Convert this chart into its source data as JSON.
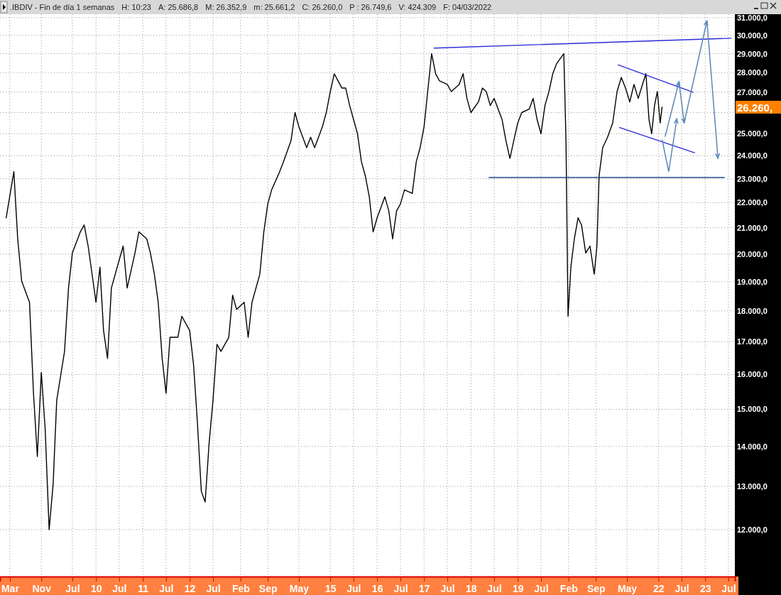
{
  "chart_data": {
    "type": "line",
    "title": ".IBDIV - Fin de día 1 semanas",
    "annotations": [
      "H: 10:23",
      "A: 25.686,8",
      "M: 26.352,9",
      "m: 25.661,2",
      "C: 26.260,0",
      "P : 26.749,6",
      "V: 424.309",
      "F: 04/03/2022",
      "26.260,"
    ],
    "log": "y",
    "grid": true,
    "marker": "none",
    "line_style": "solid",
    "xlim": [
      "2007-12-15",
      "2023-08-20"
    ],
    "xticks": [
      {
        "value": "2008-03-01",
        "label": "Mar"
      },
      {
        "value": "2008-11-01",
        "label": "Nov"
      },
      {
        "value": "2009-07-01",
        "label": "Jul"
      },
      {
        "value": "2010-01-01",
        "label": "10"
      },
      {
        "value": "2010-07-01",
        "label": "Jul"
      },
      {
        "value": "2011-01-01",
        "label": "11"
      },
      {
        "value": "2011-07-01",
        "label": "Jul"
      },
      {
        "value": "2012-01-01",
        "label": "12"
      },
      {
        "value": "2012-07-01",
        "label": "Jul"
      },
      {
        "value": "2013-02-01",
        "label": "Feb"
      },
      {
        "value": "2013-09-01",
        "label": "Sep"
      },
      {
        "value": "2014-05-01",
        "label": "May"
      },
      {
        "value": "2015-01-01",
        "label": "15"
      },
      {
        "value": "2015-07-01",
        "label": "Jul"
      },
      {
        "value": "2016-01-01",
        "label": "16"
      },
      {
        "value": "2016-07-01",
        "label": "Jul"
      },
      {
        "value": "2017-01-01",
        "label": "17"
      },
      {
        "value": "2017-07-01",
        "label": "Jul"
      },
      {
        "value": "2018-01-01",
        "label": "18"
      },
      {
        "value": "2018-07-01",
        "label": "Jul"
      },
      {
        "value": "2019-01-01",
        "label": "19"
      },
      {
        "value": "2019-07-01",
        "label": "Jul"
      },
      {
        "value": "2020-02-01",
        "label": "Feb"
      },
      {
        "value": "2020-09-01",
        "label": "Sep"
      },
      {
        "value": "2021-05-01",
        "label": "May"
      },
      {
        "value": "2022-01-01",
        "label": "22"
      },
      {
        "value": "2022-07-01",
        "label": "Jul"
      },
      {
        "value": "2023-01-01",
        "label": "23"
      },
      {
        "value": "2023-07-01",
        "label": "Jul"
      }
    ],
    "ylim": [
      11000,
      31200
    ],
    "yticks": [
      {
        "value": 12000,
        "label": "12.000,0"
      },
      {
        "value": 13000,
        "label": "13.000,0"
      },
      {
        "value": 14000,
        "label": "14.000,0"
      },
      {
        "value": 15000,
        "label": "15.000,0"
      },
      {
        "value": 16000,
        "label": "16.000,0"
      },
      {
        "value": 17000,
        "label": "17.000,0"
      },
      {
        "value": 18000,
        "label": "18.000,0"
      },
      {
        "value": 19000,
        "label": "19.000,0"
      },
      {
        "value": 20000,
        "label": "20.000,0"
      },
      {
        "value": 21000,
        "label": "21.000,0"
      },
      {
        "value": 22000,
        "label": "22.000,0"
      },
      {
        "value": 23000,
        "label": "23.000,0"
      },
      {
        "value": 24000,
        "label": "24.000,0"
      },
      {
        "value": 25000,
        "label": "25.000,0"
      },
      {
        "value": 26000,
        "label": null
      },
      {
        "value": 27000,
        "label": "27.000,0"
      },
      {
        "value": 28000,
        "label": "28.000,0"
      },
      {
        "value": 29000,
        "label": "29.000,0"
      },
      {
        "value": 30000,
        "label": "30.000,0"
      },
      {
        "value": 31000,
        "label": "31.000,0"
      }
    ],
    "series": [
      {
        "color": "#000000",
        "x": [
          "2008-02",
          "2008-04",
          "2008-05",
          "2008-06",
          "2008-08",
          "2008-09",
          "2008-10",
          "2008-11",
          "2008-12",
          "2009-01",
          "2009-02",
          "2009-03",
          "2009-05",
          "2009-06",
          "2009-07",
          "2009-09",
          "2009-10",
          "2009-11",
          "2010-01",
          "2010-02",
          "2010-03",
          "2010-04",
          "2010-05",
          "2010-07",
          "2010-08",
          "2010-09",
          "2010-11",
          "2010-12",
          "2011-02",
          "2011-03",
          "2011-04",
          "2011-05",
          "2011-06",
          "2011-07",
          "2011-08",
          "2011-10",
          "2011-11",
          "2012-01",
          "2012-02",
          "2012-03",
          "2012-04",
          "2012-05",
          "2012-06",
          "2012-07",
          "2012-08",
          "2012-09",
          "2012-11",
          "2012-12",
          "2013-01",
          "2013-03",
          "2013-04",
          "2013-05",
          "2013-07",
          "2013-08",
          "2013-09",
          "2013-10",
          "2013-12",
          "2014-01",
          "2014-03",
          "2014-04",
          "2014-05",
          "2014-07",
          "2014-08",
          "2014-09",
          "2014-11",
          "2014-12",
          "2015-01",
          "2015-02",
          "2015-04",
          "2015-05",
          "2015-06",
          "2015-08",
          "2015-09",
          "2015-10",
          "2015-11",
          "2015-12",
          "2016-01",
          "2016-03",
          "2016-04",
          "2016-05",
          "2016-06",
          "2016-07",
          "2016-08",
          "2016-10",
          "2016-11",
          "2016-12",
          "2017-01",
          "2017-02",
          "2017-03",
          "2017-04",
          "2017-05",
          "2017-07",
          "2017-08",
          "2017-10",
          "2017-11",
          "2017-12",
          "2018-01",
          "2018-03",
          "2018-04",
          "2018-05",
          "2018-06",
          "2018-07",
          "2018-09",
          "2018-10",
          "2018-11",
          "2018-12",
          "2019-01",
          "2019-02",
          "2019-04",
          "2019-05",
          "2019-06",
          "2019-07",
          "2019-08",
          "2019-09",
          "2019-10",
          "2019-11",
          "2019-12-26",
          "2020-01-12",
          "2020-01-28",
          "2020-02-19",
          "2020-03-17",
          "2020-04-15",
          "2020-05-12",
          "2020-06-14",
          "2020-07-17",
          "2020-08-19",
          "2020-09-09",
          "2020-09-26",
          "2020-10-24",
          "2020-12-01",
          "2021-01-10",
          "2021-02-13",
          "2021-03-18",
          "2021-04-20",
          "2021-05-23",
          "2021-06-25",
          "2021-07-28",
          "2021-08-30",
          "2021-09-26",
          "2021-10-20",
          "2021-11-10",
          "2021-12-02",
          "2021-12-24",
          "2022-01-15",
          "2022-01-30"
        ],
        "values": [
          21390,
          23300,
          20570,
          19020,
          18290,
          15450,
          13740,
          16060,
          14460,
          12000,
          13050,
          15250,
          16700,
          18780,
          20040,
          20840,
          21110,
          20300,
          18290,
          19520,
          17360,
          16480,
          18780,
          19780,
          20300,
          18780,
          20040,
          20840,
          20570,
          20040,
          19270,
          18290,
          16480,
          15450,
          17140,
          17140,
          17820,
          17360,
          16270,
          14660,
          12880,
          12630,
          14100,
          15250,
          16920,
          16700,
          17140,
          18530,
          18050,
          18290,
          17140,
          18290,
          19270,
          20840,
          21950,
          22530,
          23280,
          23730,
          24680,
          26000,
          25330,
          24360,
          24840,
          24360,
          25330,
          26000,
          27030,
          27940,
          27210,
          27210,
          26340,
          25000,
          23730,
          23120,
          22240,
          20840,
          21390,
          22240,
          21670,
          20570,
          21670,
          21950,
          22530,
          22380,
          23730,
          24360,
          25330,
          27210,
          29000,
          27940,
          27570,
          27390,
          27030,
          27390,
          27940,
          26690,
          26000,
          26520,
          27210,
          27030,
          26340,
          26690,
          25660,
          24680,
          23880,
          24680,
          25500,
          26000,
          26170,
          26690,
          25660,
          25000,
          26340,
          27030,
          27940,
          28480,
          29000,
          24680,
          17820,
          19520,
          20570,
          21390,
          21110,
          20040,
          20300,
          19270,
          20300,
          23120,
          24360,
          24840,
          25500,
          27030,
          27750,
          27210,
          26520,
          27390,
          26690,
          27390,
          27940,
          25660,
          25000,
          26340,
          27030,
          25500,
          26260
        ]
      },
      {
        "color": "#2b2bd9",
        "x": [
          "2017-03-20",
          "2023-07-23"
        ],
        "values": [
          29300,
          29840
        ]
      },
      {
        "color": "#1f4f8f",
        "x": [
          "2018-05-22",
          "2023-05-30"
        ],
        "values": [
          23050,
          23050
        ]
      },
      {
        "color": "#2b2bd9",
        "x": [
          "2021-02-22",
          "2022-09-28"
        ],
        "values": [
          28400,
          27000
        ]
      },
      {
        "color": "#2b2bd9",
        "x": [
          "2021-03-05",
          "2022-10-10"
        ],
        "values": [
          25290,
          24130
        ]
      }
    ]
  }
}
